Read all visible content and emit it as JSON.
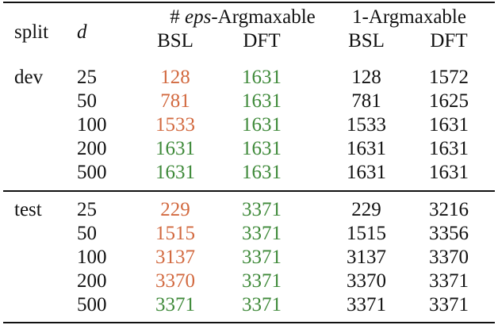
{
  "header": {
    "split": "split",
    "d": "d",
    "group_eps_prefix": "# ",
    "group_eps_italic": "eps",
    "group_eps_suffix": "-Argmaxable",
    "group_one": "1-Argmaxable",
    "sub": [
      "BSL",
      "DFT",
      "BSL",
      "DFT"
    ]
  },
  "colors": {
    "below_max": "#d2693f",
    "at_max": "#3f8a3a",
    "text": "#111111"
  },
  "groups": [
    {
      "split": "dev",
      "rows": [
        {
          "d": "25",
          "eps_bsl": "128",
          "eps_bsl_color": "orange",
          "eps_dft": "1631",
          "one_bsl": "128",
          "one_dft": "1572"
        },
        {
          "d": "50",
          "eps_bsl": "781",
          "eps_bsl_color": "orange",
          "eps_dft": "1631",
          "one_bsl": "781",
          "one_dft": "1625"
        },
        {
          "d": "100",
          "eps_bsl": "1533",
          "eps_bsl_color": "orange",
          "eps_dft": "1631",
          "one_bsl": "1533",
          "one_dft": "1631"
        },
        {
          "d": "200",
          "eps_bsl": "1631",
          "eps_bsl_color": "green",
          "eps_dft": "1631",
          "one_bsl": "1631",
          "one_dft": "1631"
        },
        {
          "d": "500",
          "eps_bsl": "1631",
          "eps_bsl_color": "green",
          "eps_dft": "1631",
          "one_bsl": "1631",
          "one_dft": "1631"
        }
      ]
    },
    {
      "split": "test",
      "rows": [
        {
          "d": "25",
          "eps_bsl": "229",
          "eps_bsl_color": "orange",
          "eps_dft": "3371",
          "one_bsl": "229",
          "one_dft": "3216"
        },
        {
          "d": "50",
          "eps_bsl": "1515",
          "eps_bsl_color": "orange",
          "eps_dft": "3371",
          "one_bsl": "1515",
          "one_dft": "3356"
        },
        {
          "d": "100",
          "eps_bsl": "3137",
          "eps_bsl_color": "orange",
          "eps_dft": "3371",
          "one_bsl": "3137",
          "one_dft": "3370"
        },
        {
          "d": "200",
          "eps_bsl": "3370",
          "eps_bsl_color": "orange",
          "eps_dft": "3371",
          "one_bsl": "3370",
          "one_dft": "3371"
        },
        {
          "d": "500",
          "eps_bsl": "3371",
          "eps_bsl_color": "green",
          "eps_dft": "3371",
          "one_bsl": "3371",
          "one_dft": "3371"
        }
      ]
    }
  ]
}
